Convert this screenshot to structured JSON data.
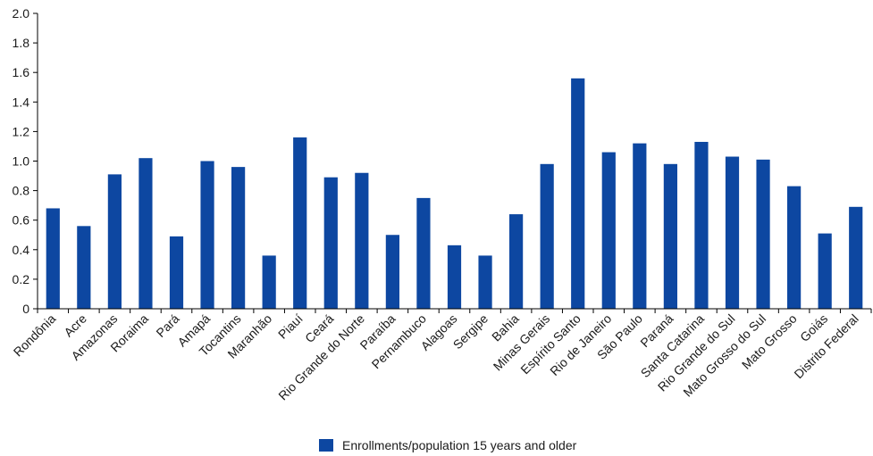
{
  "chart_data": {
    "type": "bar",
    "categories": [
      "Rondônia",
      "Acre",
      "Amazonas",
      "Roraima",
      "Pará",
      "Amapá",
      "Tocantins",
      "Maranhão",
      "Piauí",
      "Ceará",
      "Rio Grande do Norte",
      "Paraíba",
      "Pernambuco",
      "Alagoas",
      "Sergipe",
      "Bahia",
      "Minas Gerais",
      "Espírito Santo",
      "Rio de Janeiro",
      "São Paulo",
      "Paraná",
      "Santa Catarina",
      "Rio Grande do Sul",
      "Mato Grosso do Sul",
      "Mato Grosso",
      "Goiás",
      "Distrito Federal"
    ],
    "series": [
      {
        "name": "Enrollments/population 15 years and older",
        "color": "#0d47a1",
        "values": [
          0.68,
          0.56,
          0.91,
          1.02,
          0.49,
          1.0,
          0.96,
          0.36,
          1.16,
          0.89,
          0.92,
          0.5,
          0.75,
          0.43,
          0.36,
          0.64,
          0.98,
          1.56,
          1.06,
          1.12,
          0.98,
          1.13,
          1.03,
          1.01,
          0.83,
          0.51,
          0.69
        ]
      }
    ],
    "ylim": [
      0,
      2.0
    ],
    "yticks": [
      "0",
      "0.2",
      "0.4",
      "0.6",
      "0.8",
      "1.0",
      "1.2",
      "1.4",
      "1.6",
      "1.8",
      "2.0"
    ],
    "legend_position": "bottom-center",
    "grid": false
  }
}
